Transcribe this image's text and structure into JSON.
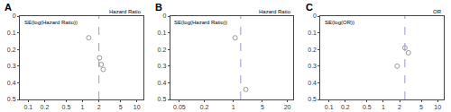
{
  "chart_data": [
    {
      "type": "scatter",
      "title": "A",
      "y_label": "SE(log(Hazard Ratio))",
      "x_label": "Hazard Ratio",
      "x": [
        1.3,
        2.05,
        2.2,
        2.4
      ],
      "values": [
        0.13,
        0.25,
        0.29,
        0.32
      ],
      "color": "#999999",
      "marker": "open_circle",
      "log": "x",
      "grid": false,
      "xlim": [
        0.07,
        13.0
      ],
      "xticks": [
        0.1,
        0.2,
        0.5,
        1,
        2,
        5,
        10
      ],
      "ylim": [
        0.5,
        0.0
      ],
      "yticks": [
        0,
        0.1,
        0.2,
        0.3,
        0.4,
        0.5
      ],
      "vline": {
        "x": 2.0,
        "color": "#9999cc",
        "line_style": "dashed"
      }
    },
    {
      "type": "scatter",
      "title": "B",
      "y_label": "SE(log(Hazard Ratio))",
      "x_label": "Hazard Ratio",
      "x": [
        1.1,
        2.0
      ],
      "values": [
        0.13,
        0.44
      ],
      "color": "#999999",
      "marker": "open_circle",
      "log": "x",
      "grid": false,
      "xlim": [
        0.03,
        28.0
      ],
      "xticks": [
        0.05,
        0.2,
        1,
        5,
        20
      ],
      "ylim": [
        0.5,
        0.0
      ],
      "yticks": [
        0,
        0.1,
        0.2,
        0.3,
        0.4,
        0.5
      ],
      "vline": {
        "x": 1.5,
        "color": "#9999cc",
        "line_style": "dashed"
      }
    },
    {
      "type": "scatter",
      "title": "C",
      "y_label": "SE(log(OR))",
      "x_label": "OR",
      "x": [
        1.8,
        2.5,
        2.9
      ],
      "values": [
        0.3,
        0.19,
        0.22
      ],
      "color": "#999999",
      "marker": "open_circle",
      "log": "x",
      "grid": false,
      "xlim": [
        0.07,
        13.0
      ],
      "xticks": [
        0.1,
        0.2,
        0.5,
        1,
        2,
        5,
        10
      ],
      "ylim": [
        0.5,
        0.0
      ],
      "yticks": [
        0,
        0.1,
        0.2,
        0.3,
        0.4,
        0.5
      ],
      "vline": {
        "x": 2.5,
        "color": "#9999cc",
        "line_style": "dashed"
      }
    }
  ]
}
